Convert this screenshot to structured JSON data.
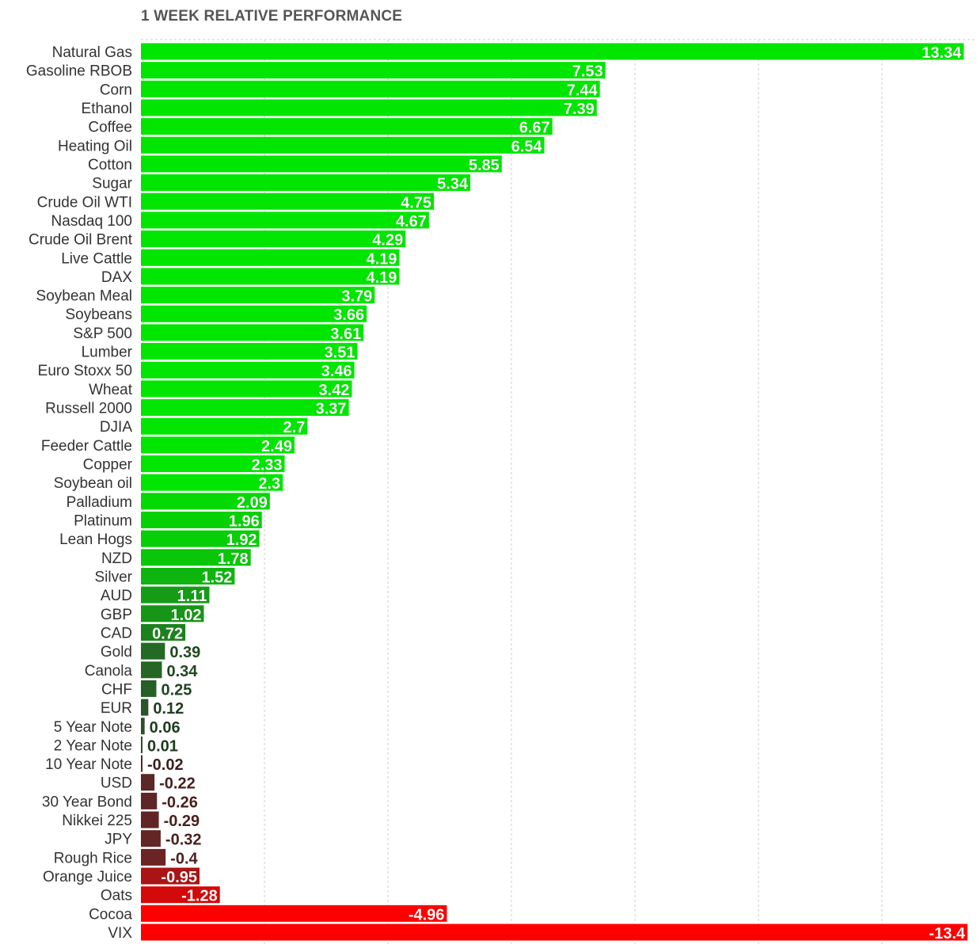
{
  "chart_data": {
    "type": "bar",
    "orientation": "horizontal",
    "title": "1 WEEK RELATIVE PERFORMANCE",
    "xlabel": "",
    "ylabel": "",
    "xlim": [
      0,
      13.4
    ],
    "grid": true,
    "legend": "none",
    "value_colors": {
      "positive_light": "#00e600",
      "positive_dark": "#2d4a2d",
      "neutral": "#2b2b2b",
      "negative_dark": "#4a2b2b",
      "negative_light": "#ff0000"
    },
    "categories": [
      "Natural Gas",
      "Gasoline RBOB",
      "Corn",
      "Ethanol",
      "Coffee",
      "Heating Oil",
      "Cotton",
      "Sugar",
      "Crude Oil WTI",
      "Nasdaq 100",
      "Crude Oil Brent",
      "Live Cattle",
      "DAX",
      "Soybean Meal",
      "Soybeans",
      "S&P 500",
      "Lumber",
      "Euro Stoxx 50",
      "Wheat",
      "Russell 2000",
      "DJIA",
      "Feeder Cattle",
      "Copper",
      "Soybean oil",
      "Palladium",
      "Platinum",
      "Lean Hogs",
      "NZD",
      "Silver",
      "AUD",
      "GBP",
      "CAD",
      "Gold",
      "Canola",
      "CHF",
      "EUR",
      "5 Year Note",
      "2 Year Note",
      "10 Year Note",
      "USD",
      "30 Year Bond",
      "Nikkei 225",
      "JPY",
      "Rough Rice",
      "Orange Juice",
      "Oats",
      "Cocoa",
      "VIX"
    ],
    "values": [
      13.34,
      7.53,
      7.44,
      7.39,
      6.67,
      6.54,
      5.85,
      5.34,
      4.75,
      4.67,
      4.29,
      4.19,
      4.19,
      3.79,
      3.66,
      3.61,
      3.51,
      3.46,
      3.42,
      3.37,
      2.7,
      2.49,
      2.33,
      2.3,
      2.09,
      1.96,
      1.92,
      1.78,
      1.52,
      1.11,
      1.02,
      0.72,
      0.39,
      0.34,
      0.25,
      0.12,
      0.06,
      0.01,
      -0.02,
      -0.22,
      -0.26,
      -0.29,
      -0.32,
      -0.4,
      -0.95,
      -1.28,
      -4.96,
      -13.4
    ],
    "value_labels": [
      "13.34",
      "7.53",
      "7.44",
      "7.39",
      "6.67",
      "6.54",
      "5.85",
      "5.34",
      "4.75",
      "4.67",
      "4.29",
      "4.19",
      "4.19",
      "3.79",
      "3.66",
      "3.61",
      "3.51",
      "3.46",
      "3.42",
      "3.37",
      "2.7",
      "2.49",
      "2.33",
      "2.3",
      "2.09",
      "1.96",
      "1.92",
      "1.78",
      "1.52",
      "1.11",
      "1.02",
      "0.72",
      "0.39",
      "0.34",
      "0.25",
      "0.12",
      "0.06",
      "0.01",
      "-0.02",
      "-0.22",
      "-0.26",
      "-0.29",
      "-0.32",
      "-0.4",
      "-0.95",
      "-1.28",
      "-4.96",
      "-13.4"
    ]
  }
}
